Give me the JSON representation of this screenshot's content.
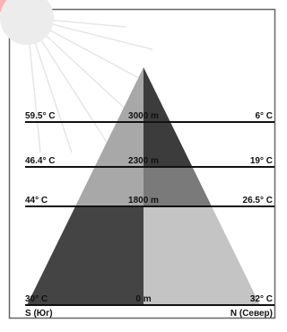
{
  "levels": [
    {
      "south": "59.5° C",
      "altitude": "3000 m",
      "north": "6° C"
    },
    {
      "south": "46.4° C",
      "altitude": "2300 m",
      "north": "19° C"
    },
    {
      "south": "44° C",
      "altitude": "1800 m",
      "north": "26.5° C"
    },
    {
      "south": "30° C",
      "altitude": "0 m",
      "north": "32° C"
    }
  ],
  "footer": {
    "south": "S (Юг)",
    "north": "N (Север)"
  }
}
